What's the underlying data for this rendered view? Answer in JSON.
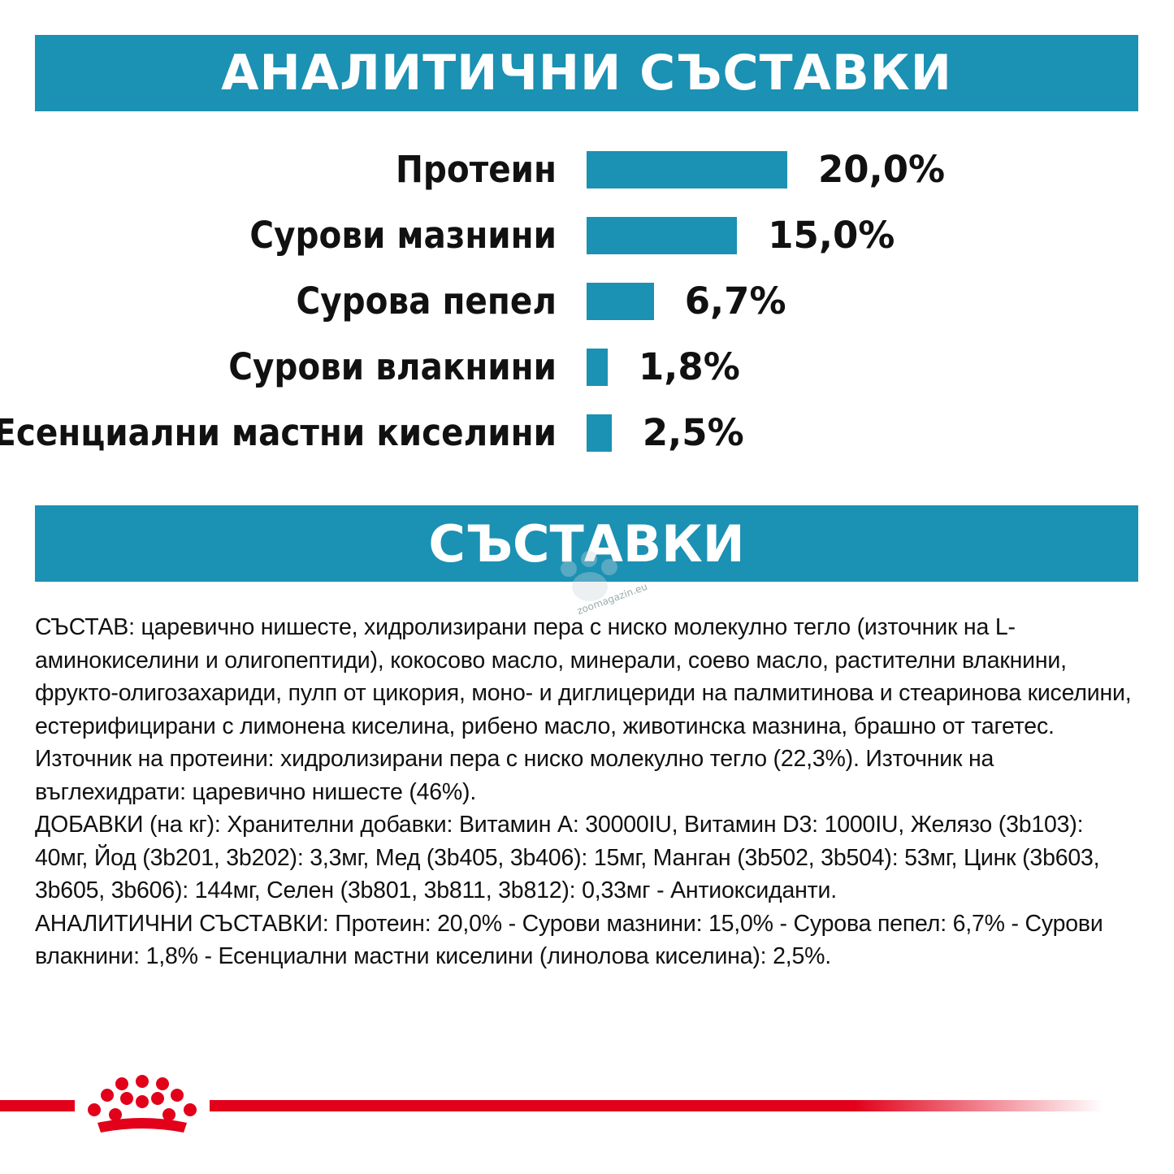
{
  "banners": {
    "analytical": "АНАЛИТИЧНИ СЪСТАВКИ",
    "ingredients": "СЪСТАВКИ"
  },
  "colors": {
    "accent": "#1b91b3",
    "brand_red": "#e2001a"
  },
  "chart_data": {
    "type": "bar",
    "orientation": "horizontal",
    "categories": [
      "Протеин",
      "Сурови мазнини",
      "Сурова пепел",
      "Сурови влакнини",
      "Есенциални мастни киселини"
    ],
    "values": [
      20.0,
      15.0,
      6.7,
      1.8,
      2.5
    ],
    "value_labels": [
      "20,0%",
      "15,0%",
      "6,7%",
      "1,8%",
      "2,5%"
    ],
    "unit": "%"
  },
  "ingredients_text": {
    "composition": "СЪСТАВ: царевично нишесте, хидролизирани пера с ниско молекулно тегло (източник на L-аминокиселини и олигопептиди), кокосово масло, минерали, соево масло, растителни влакнини, фрукто-олигозахариди, пулп от цикория, моно- и диглицериди на палмитинова и стеаринова киселини, естерифицирани с лимонена киселина, рибено масло, животинска мазнина, брашно от тагетес. Източник на протеини: хидролизирани пера с ниско молекулно тегло (22,3%). Източник на въглехидрати: царевично нишесте (46%).",
    "additives": "ДОБАВКИ (на кг): Хранителни добавки: Витамин А: 30000IU, Витамин D3: 1000IU, Желязо (3b103): 40мг, Йод (3b201, 3b202): 3,3мг, Мед (3b405, 3b406): 15мг, Манган (3b502, 3b504): 53мг, Цинк (3b603, 3b605, 3b606): 144мг, Селен (3b801, 3b811, 3b812): 0,33мг - Антиоксиданти.",
    "analytical": "АНАЛИТИЧНИ СЪСТАВКИ: Протеин: 20,0% - Сурови мазнини: 15,0% - Сурова пепел: 6,7% - Сурови влакнини: 1,8% - Есенциални мастни киселини (линолова киселина): 2,5%."
  },
  "watermark": {
    "text": "zoomagazin.eu",
    "icon": "paw-icon"
  },
  "footer": {
    "logo": "royal-crown-icon"
  }
}
